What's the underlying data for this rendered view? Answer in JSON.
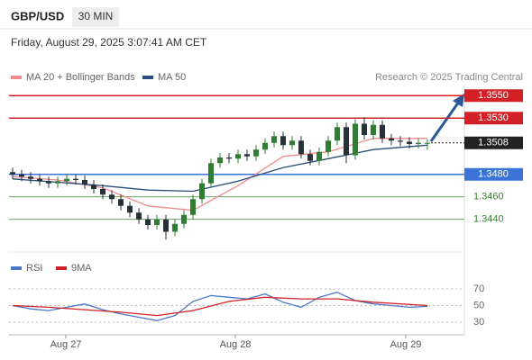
{
  "header": {
    "symbol": "GBP/USD",
    "timeframe": "30 MIN",
    "datetime": "Friday, August 29, 2025 3:07:41 AM CET"
  },
  "chart_data": [
    {
      "type": "candlestick",
      "source": "Research © 2025 Trading Central",
      "xlim": [
        -0.2,
        50.1
      ],
      "ylim": [
        1.3415,
        1.3559
      ],
      "up_color": "#2e7d32",
      "down_color": "#263238",
      "open": [
        1.3482,
        1.348,
        1.3478,
        1.3476,
        1.3474,
        1.3472,
        1.3474,
        1.3476,
        1.3475,
        1.3471,
        1.3467,
        1.3462,
        1.3458,
        1.3452,
        1.3446,
        1.344,
        1.3435,
        1.344,
        1.3429,
        1.3436,
        1.3444,
        1.3458,
        1.3472,
        1.349,
        1.3495,
        1.3494,
        1.3498,
        1.3496,
        1.3502,
        1.3508,
        1.3514,
        1.3506,
        1.351,
        1.3498,
        1.3492,
        1.35,
        1.351,
        1.3522,
        1.3497,
        1.3525,
        1.3515,
        1.3524,
        1.3512,
        1.351,
        1.3509,
        1.3507,
        1.3508
      ],
      "high": [
        1.3486,
        1.3484,
        1.3482,
        1.348,
        1.3478,
        1.3478,
        1.348,
        1.348,
        1.3479,
        1.3475,
        1.3471,
        1.3466,
        1.3462,
        1.3456,
        1.345,
        1.3444,
        1.3444,
        1.3444,
        1.344,
        1.3448,
        1.3462,
        1.3476,
        1.3494,
        1.3499,
        1.3499,
        1.3502,
        1.3502,
        1.3506,
        1.3512,
        1.3518,
        1.3518,
        1.3514,
        1.3514,
        1.3502,
        1.3504,
        1.3514,
        1.3526,
        1.3526,
        1.3529,
        1.3531,
        1.3528,
        1.3528,
        1.3516,
        1.3514,
        1.3513,
        1.3512,
        1.3511
      ],
      "low": [
        1.3476,
        1.3474,
        1.3472,
        1.347,
        1.3468,
        1.3468,
        1.347,
        1.3471,
        1.3467,
        1.3463,
        1.3458,
        1.3454,
        1.3448,
        1.3442,
        1.3436,
        1.3431,
        1.3431,
        1.3422,
        1.3425,
        1.3432,
        1.344,
        1.3454,
        1.3468,
        1.3486,
        1.349,
        1.349,
        1.3492,
        1.3492,
        1.3498,
        1.3504,
        1.3502,
        1.3502,
        1.3494,
        1.3488,
        1.3488,
        1.3496,
        1.3506,
        1.349,
        1.3493,
        1.3511,
        1.3511,
        1.3508,
        1.3506,
        1.3505,
        1.3503,
        1.3503,
        1.3502
      ],
      "close": [
        1.348,
        1.3478,
        1.3476,
        1.3474,
        1.3472,
        1.3474,
        1.3476,
        1.3475,
        1.3471,
        1.3467,
        1.3462,
        1.3458,
        1.3452,
        1.3446,
        1.344,
        1.3435,
        1.344,
        1.3429,
        1.3436,
        1.3444,
        1.3458,
        1.3472,
        1.349,
        1.3495,
        1.3494,
        1.3498,
        1.3496,
        1.3502,
        1.3508,
        1.3514,
        1.3506,
        1.351,
        1.3498,
        1.3492,
        1.35,
        1.351,
        1.3522,
        1.3497,
        1.3525,
        1.3515,
        1.3524,
        1.3512,
        1.351,
        1.3509,
        1.3507,
        1.3508,
        1.3508
      ],
      "series": [
        {
          "name": "MA 20 + Bollinger Bands",
          "color": "#f08c8c",
          "x": [
            0,
            5,
            10,
            15,
            20,
            25,
            30,
            35,
            40,
            46
          ],
          "values": [
            1.3478,
            1.3475,
            1.3468,
            1.3452,
            1.3448,
            1.347,
            1.3496,
            1.35,
            1.3512,
            1.3512
          ]
        },
        {
          "name": "MA 50",
          "color": "#2b4c7e",
          "x": [
            0,
            5,
            10,
            15,
            20,
            25,
            30,
            35,
            40,
            46
          ],
          "values": [
            1.3476,
            1.3473,
            1.347,
            1.3466,
            1.3465,
            1.3474,
            1.3486,
            1.3494,
            1.3502,
            1.3506
          ]
        }
      ],
      "levels": [
        {
          "value": 1.355,
          "label": "1.3550",
          "color": "#d32027",
          "style": "box"
        },
        {
          "value": 1.353,
          "label": "1.3530",
          "color": "#d32027",
          "style": "box"
        },
        {
          "value": 1.3508,
          "label": "1.3508",
          "color": "#222222",
          "style": "box",
          "dash": true
        },
        {
          "value": 1.348,
          "label": "1.3480",
          "color": "#3b74d6",
          "style": "box"
        },
        {
          "value": 1.346,
          "label": "1.3460",
          "color": "#3a7d34",
          "style": "text"
        },
        {
          "value": 1.344,
          "label": "1.3440",
          "color": "#3a7d34",
          "style": "text"
        }
      ]
    },
    {
      "type": "line",
      "xlim": [
        -0.2,
        50.1
      ],
      "ylim": [
        19.2,
        81.9
      ],
      "yticks": [
        70,
        50,
        30
      ],
      "xticks": [
        {
          "value": 5.9,
          "label": "Aug 27"
        },
        {
          "value": 24.7,
          "label": "Aug 28"
        },
        {
          "value": 43.6,
          "label": "Aug 29"
        }
      ],
      "series": [
        {
          "name": "RSI",
          "color": "#4a78c8",
          "x": [
            0,
            2,
            4,
            6,
            8,
            10,
            12,
            14,
            16,
            18,
            20,
            22,
            24,
            26,
            28,
            30,
            32,
            34,
            36,
            38,
            40,
            42,
            44,
            46
          ],
          "values": [
            50,
            46,
            44,
            48,
            52,
            45,
            40,
            36,
            32,
            38,
            55,
            62,
            60,
            58,
            64,
            54,
            48,
            60,
            66,
            56,
            52,
            50,
            48,
            49
          ]
        },
        {
          "name": "9MA",
          "color": "#d32027",
          "x": [
            0,
            4,
            8,
            12,
            16,
            20,
            24,
            28,
            32,
            36,
            40,
            46
          ],
          "values": [
            50,
            48,
            45,
            42,
            38,
            44,
            55,
            60,
            58,
            58,
            54,
            50
          ]
        }
      ]
    }
  ]
}
